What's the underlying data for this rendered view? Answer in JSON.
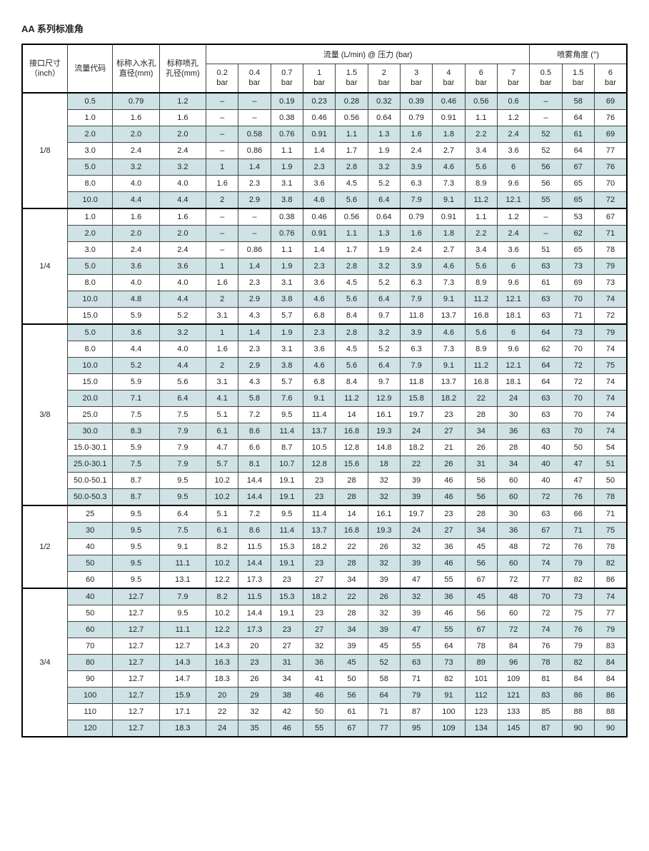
{
  "title": "AA 系列标准角",
  "headers": {
    "conn": "接口尺寸\n（inch）",
    "flow_code": "流量代码",
    "inlet": "标称入水孔\n直径(mm)",
    "orifice": "标称喷孔\n孔径(mm)",
    "flow_group": "流量 (L/min) @ 压力 (bar)",
    "angle_group": "喷雾角度 (°)",
    "pressures": [
      "0.2",
      "0.4",
      "0.7",
      "1",
      "1.5",
      "2",
      "3",
      "4",
      "6",
      "7"
    ],
    "angles": [
      "0.5",
      "1.5",
      "6"
    ],
    "bar": "bar"
  },
  "colors": {
    "alt_row": "#cfe2e5",
    "border": "#444444",
    "heavy": "#000000",
    "bg": "#ffffff",
    "text": "#222222"
  },
  "groups": [
    {
      "conn": "1/8",
      "rows": [
        {
          "alt": true,
          "c": [
            "0.5",
            "0.79",
            "1.2",
            "–",
            "–",
            "0.19",
            "0.23",
            "0.28",
            "0.32",
            "0.39",
            "0.46",
            "0.56",
            "0.6",
            "–",
            "58",
            "69"
          ]
        },
        {
          "alt": false,
          "c": [
            "1.0",
            "1.6",
            "1.6",
            "–",
            "–",
            "0.38",
            "0.46",
            "0.56",
            "0.64",
            "0.79",
            "0.91",
            "1.1",
            "1.2",
            "–",
            "64",
            "76"
          ]
        },
        {
          "alt": true,
          "c": [
            "2.0",
            "2.0",
            "2.0",
            "–",
            "0.58",
            "0.76",
            "0.91",
            "1.1",
            "1.3",
            "1.6",
            "1.8",
            "2.2",
            "2.4",
            "52",
            "61",
            "69"
          ]
        },
        {
          "alt": false,
          "c": [
            "3.0",
            "2.4",
            "2.4",
            "–",
            "0.86",
            "1.1",
            "1.4",
            "1.7",
            "1.9",
            "2.4",
            "2.7",
            "3.4",
            "3.6",
            "52",
            "64",
            "77"
          ]
        },
        {
          "alt": true,
          "c": [
            "5.0",
            "3.2",
            "3.2",
            "1",
            "1.4",
            "1.9",
            "2.3",
            "2.8",
            "3.2",
            "3.9",
            "4.6",
            "5.6",
            "6",
            "56",
            "67",
            "76"
          ]
        },
        {
          "alt": false,
          "c": [
            "8.0",
            "4.0",
            "4.0",
            "1.6",
            "2.3",
            "3.1",
            "3.6",
            "4.5",
            "5.2",
            "6.3",
            "7.3",
            "8.9",
            "9.6",
            "56",
            "65",
            "70"
          ]
        },
        {
          "alt": true,
          "c": [
            "10.0",
            "4.4",
            "4.4",
            "2",
            "2.9",
            "3.8",
            "4.6",
            "5.6",
            "6.4",
            "7.9",
            "9.1",
            "11.2",
            "12.1",
            "55",
            "65",
            "72"
          ]
        }
      ]
    },
    {
      "conn": "1/4",
      "rows": [
        {
          "alt": false,
          "c": [
            "1.0",
            "1.6",
            "1.6",
            "–",
            "–",
            "0.38",
            "0.46",
            "0.56",
            "0.64",
            "0.79",
            "0.91",
            "1.1",
            "1.2",
            "–",
            "53",
            "67"
          ]
        },
        {
          "alt": true,
          "c": [
            "2.0",
            "2.0",
            "2.0",
            "–",
            "–",
            "0.76",
            "0.91",
            "1.1",
            "1.3",
            "1.6",
            "1.8",
            "2.2",
            "2.4",
            "–",
            "62",
            "71"
          ]
        },
        {
          "alt": false,
          "c": [
            "3.0",
            "2.4",
            "2.4",
            "–",
            "0.86",
            "1.1",
            "1.4",
            "1.7",
            "1.9",
            "2.4",
            "2.7",
            "3.4",
            "3.6",
            "51",
            "65",
            "78"
          ]
        },
        {
          "alt": true,
          "c": [
            "5.0",
            "3.6",
            "3.6",
            "1",
            "1.4",
            "1.9",
            "2.3",
            "2.8",
            "3.2",
            "3.9",
            "4.6",
            "5.6",
            "6",
            "63",
            "73",
            "79"
          ]
        },
        {
          "alt": false,
          "c": [
            "8.0",
            "4.0",
            "4.0",
            "1.6",
            "2.3",
            "3.1",
            "3.6",
            "4.5",
            "5.2",
            "6.3",
            "7.3",
            "8.9",
            "9.6",
            "61",
            "69",
            "73"
          ]
        },
        {
          "alt": true,
          "c": [
            "10.0",
            "4.8",
            "4.4",
            "2",
            "2.9",
            "3.8",
            "4.6",
            "5.6",
            "6.4",
            "7.9",
            "9.1",
            "11.2",
            "12.1",
            "63",
            "70",
            "74"
          ]
        },
        {
          "alt": false,
          "c": [
            "15.0",
            "5.9",
            "5.2",
            "3.1",
            "4.3",
            "5.7",
            "6.8",
            "8.4",
            "9.7",
            "11.8",
            "13.7",
            "16.8",
            "18.1",
            "63",
            "71",
            "72"
          ]
        }
      ]
    },
    {
      "conn": "3/8",
      "rows": [
        {
          "alt": true,
          "c": [
            "5.0",
            "3.6",
            "3.2",
            "1",
            "1.4",
            "1.9",
            "2.3",
            "2.8",
            "3.2",
            "3.9",
            "4.6",
            "5.6",
            "6",
            "64",
            "73",
            "79"
          ]
        },
        {
          "alt": false,
          "c": [
            "8.0",
            "4.4",
            "4.0",
            "1.6",
            "2.3",
            "3.1",
            "3.6",
            "4.5",
            "5.2",
            "6.3",
            "7.3",
            "8.9",
            "9.6",
            "62",
            "70",
            "74"
          ]
        },
        {
          "alt": true,
          "c": [
            "10.0",
            "5.2",
            "4.4",
            "2",
            "2.9",
            "3.8",
            "4.6",
            "5.6",
            "6.4",
            "7.9",
            "9.1",
            "11.2",
            "12.1",
            "64",
            "72",
            "75"
          ]
        },
        {
          "alt": false,
          "c": [
            "15.0",
            "5.9",
            "5.6",
            "3.1",
            "4.3",
            "5.7",
            "6.8",
            "8.4",
            "9.7",
            "11.8",
            "13.7",
            "16.8",
            "18.1",
            "64",
            "72",
            "74"
          ]
        },
        {
          "alt": true,
          "c": [
            "20.0",
            "7.1",
            "6.4",
            "4.1",
            "5.8",
            "7.6",
            "9.1",
            "11.2",
            "12.9",
            "15.8",
            "18.2",
            "22",
            "24",
            "63",
            "70",
            "74"
          ]
        },
        {
          "alt": false,
          "c": [
            "25.0",
            "7.5",
            "7.5",
            "5.1",
            "7.2",
            "9.5",
            "11.4",
            "14",
            "16.1",
            "19.7",
            "23",
            "28",
            "30",
            "63",
            "70",
            "74"
          ]
        },
        {
          "alt": true,
          "c": [
            "30.0",
            "8.3",
            "7.9",
            "6.1",
            "8.6",
            "11.4",
            "13.7",
            "16.8",
            "19.3",
            "24",
            "27",
            "34",
            "36",
            "63",
            "70",
            "74"
          ]
        },
        {
          "alt": false,
          "c": [
            "15.0-30.1",
            "5.9",
            "7.9",
            "4.7",
            "6.6",
            "8.7",
            "10.5",
            "12.8",
            "14.8",
            "18.2",
            "21",
            "26",
            "28",
            "40",
            "50",
            "54"
          ]
        },
        {
          "alt": true,
          "c": [
            "25.0-30.1",
            "7.5",
            "7.9",
            "5.7",
            "8.1",
            "10.7",
            "12.8",
            "15.6",
            "18",
            "22",
            "26",
            "31",
            "34",
            "40",
            "47",
            "51"
          ]
        },
        {
          "alt": false,
          "c": [
            "50.0-50.1",
            "8.7",
            "9.5",
            "10.2",
            "14.4",
            "19.1",
            "23",
            "28",
            "32",
            "39",
            "46",
            "56",
            "60",
            "40",
            "47",
            "50"
          ]
        },
        {
          "alt": true,
          "c": [
            "50.0-50.3",
            "8.7",
            "9.5",
            "10.2",
            "14.4",
            "19.1",
            "23",
            "28",
            "32",
            "39",
            "46",
            "56",
            "60",
            "72",
            "76",
            "78"
          ]
        }
      ]
    },
    {
      "conn": "1/2",
      "rows": [
        {
          "alt": false,
          "c": [
            "25",
            "9.5",
            "6.4",
            "5.1",
            "7.2",
            "9.5",
            "11.4",
            "14",
            "16.1",
            "19.7",
            "23",
            "28",
            "30",
            "63",
            "66",
            "71"
          ]
        },
        {
          "alt": true,
          "c": [
            "30",
            "9.5",
            "7.5",
            "6.1",
            "8.6",
            "11.4",
            "13.7",
            "16.8",
            "19.3",
            "24",
            "27",
            "34",
            "36",
            "67",
            "71",
            "75"
          ]
        },
        {
          "alt": false,
          "c": [
            "40",
            "9.5",
            "9.1",
            "8.2",
            "11.5",
            "15.3",
            "18.2",
            "22",
            "26",
            "32",
            "36",
            "45",
            "48",
            "72",
            "76",
            "78"
          ]
        },
        {
          "alt": true,
          "c": [
            "50",
            "9.5",
            "11.1",
            "10.2",
            "14.4",
            "19.1",
            "23",
            "28",
            "32",
            "39",
            "46",
            "56",
            "60",
            "74",
            "79",
            "82"
          ]
        },
        {
          "alt": false,
          "c": [
            "60",
            "9.5",
            "13.1",
            "12.2",
            "17.3",
            "23",
            "27",
            "34",
            "39",
            "47",
            "55",
            "67",
            "72",
            "77",
            "82",
            "86"
          ]
        }
      ]
    },
    {
      "conn": "3/4",
      "rows": [
        {
          "alt": true,
          "c": [
            "40",
            "12.7",
            "7.9",
            "8.2",
            "11.5",
            "15.3",
            "18.2",
            "22",
            "26",
            "32",
            "36",
            "45",
            "48",
            "70",
            "73",
            "74"
          ]
        },
        {
          "alt": false,
          "c": [
            "50",
            "12.7",
            "9.5",
            "10.2",
            "14.4",
            "19.1",
            "23",
            "28",
            "32",
            "39",
            "46",
            "56",
            "60",
            "72",
            "75",
            "77"
          ]
        },
        {
          "alt": true,
          "c": [
            "60",
            "12.7",
            "11.1",
            "12.2",
            "17.3",
            "23",
            "27",
            "34",
            "39",
            "47",
            "55",
            "67",
            "72",
            "74",
            "76",
            "79"
          ]
        },
        {
          "alt": false,
          "c": [
            "70",
            "12.7",
            "12.7",
            "14.3",
            "20",
            "27",
            "32",
            "39",
            "45",
            "55",
            "64",
            "78",
            "84",
            "76",
            "79",
            "83"
          ]
        },
        {
          "alt": true,
          "c": [
            "80",
            "12.7",
            "14.3",
            "16.3",
            "23",
            "31",
            "36",
            "45",
            "52",
            "63",
            "73",
            "89",
            "96",
            "78",
            "82",
            "84"
          ]
        },
        {
          "alt": false,
          "c": [
            "90",
            "12.7",
            "14.7",
            "18.3",
            "26",
            "34",
            "41",
            "50",
            "58",
            "71",
            "82",
            "101",
            "109",
            "81",
            "84",
            "84"
          ]
        },
        {
          "alt": true,
          "c": [
            "100",
            "12.7",
            "15.9",
            "20",
            "29",
            "38",
            "46",
            "56",
            "64",
            "79",
            "91",
            "112",
            "121",
            "83",
            "86",
            "86"
          ]
        },
        {
          "alt": false,
          "c": [
            "110",
            "12.7",
            "17.1",
            "22",
            "32",
            "42",
            "50",
            "61",
            "71",
            "87",
            "100",
            "123",
            "133",
            "85",
            "88",
            "88"
          ]
        },
        {
          "alt": true,
          "c": [
            "120",
            "12.7",
            "18.3",
            "24",
            "35",
            "46",
            "55",
            "67",
            "77",
            "95",
            "109",
            "134",
            "145",
            "87",
            "90",
            "90"
          ]
        }
      ]
    }
  ]
}
